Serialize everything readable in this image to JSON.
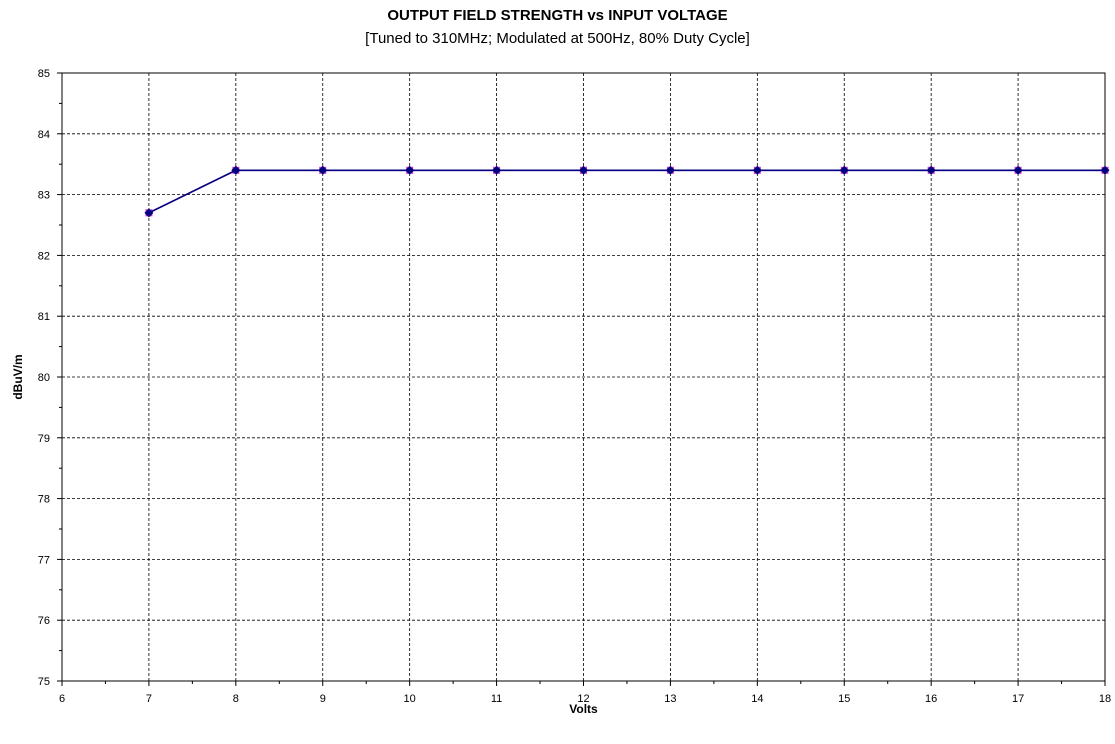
{
  "chart_data": {
    "type": "line",
    "title": "OUTPUT FIELD STRENGTH vs INPUT VOLTAGE",
    "subtitle": "[Tuned to 310MHz;  Modulated at 500Hz, 80% Duty Cycle]",
    "xlabel": "Volts",
    "ylabel": "dBuV/m",
    "xlim": [
      6,
      18
    ],
    "ylim": [
      75,
      85
    ],
    "x_ticks": [
      6,
      7,
      8,
      9,
      10,
      11,
      12,
      13,
      14,
      15,
      16,
      17,
      18
    ],
    "y_ticks": [
      75,
      76,
      77,
      78,
      79,
      80,
      81,
      82,
      83,
      84,
      85
    ],
    "grid": true,
    "series": [
      {
        "x": [
          7,
          8,
          9,
          10,
          11,
          12,
          13,
          14,
          15,
          16,
          17,
          18
        ],
        "values": [
          82.7,
          83.4,
          83.4,
          83.4,
          83.4,
          83.4,
          83.4,
          83.4,
          83.4,
          83.4,
          83.4,
          83.4
        ],
        "color": "#000080",
        "marker": "diamond"
      },
      {
        "x": [
          7,
          8,
          9,
          10,
          11,
          12,
          13,
          14,
          15,
          16,
          17,
          18
        ],
        "values": [
          82.7,
          83.4,
          83.4,
          83.4,
          83.4,
          83.4,
          83.4,
          83.4,
          83.4,
          83.4,
          83.4,
          83.4
        ],
        "color": "#cc33cc",
        "marker": "square"
      }
    ]
  }
}
